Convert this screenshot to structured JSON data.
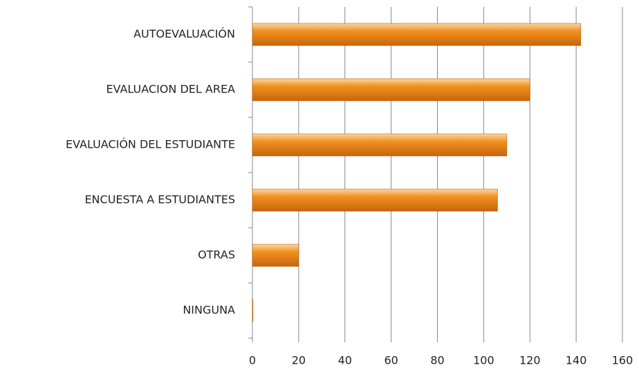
{
  "chart_data": {
    "type": "bar",
    "orientation": "horizontal",
    "categories": [
      "AUTOEVALUACIÓN",
      "EVALUACION DEL AREA",
      "EVALUACIÓN DEL ESTUDIANTE",
      "ENCUESTA A ESTUDIANTES",
      "OTRAS",
      "NINGUNA"
    ],
    "values": [
      142,
      120,
      110,
      106,
      20,
      0
    ],
    "color": "#f0901e",
    "xlim": [
      0,
      160
    ],
    "xticks": [
      0,
      20,
      40,
      60,
      80,
      100,
      120,
      140,
      160
    ],
    "grid": true
  }
}
